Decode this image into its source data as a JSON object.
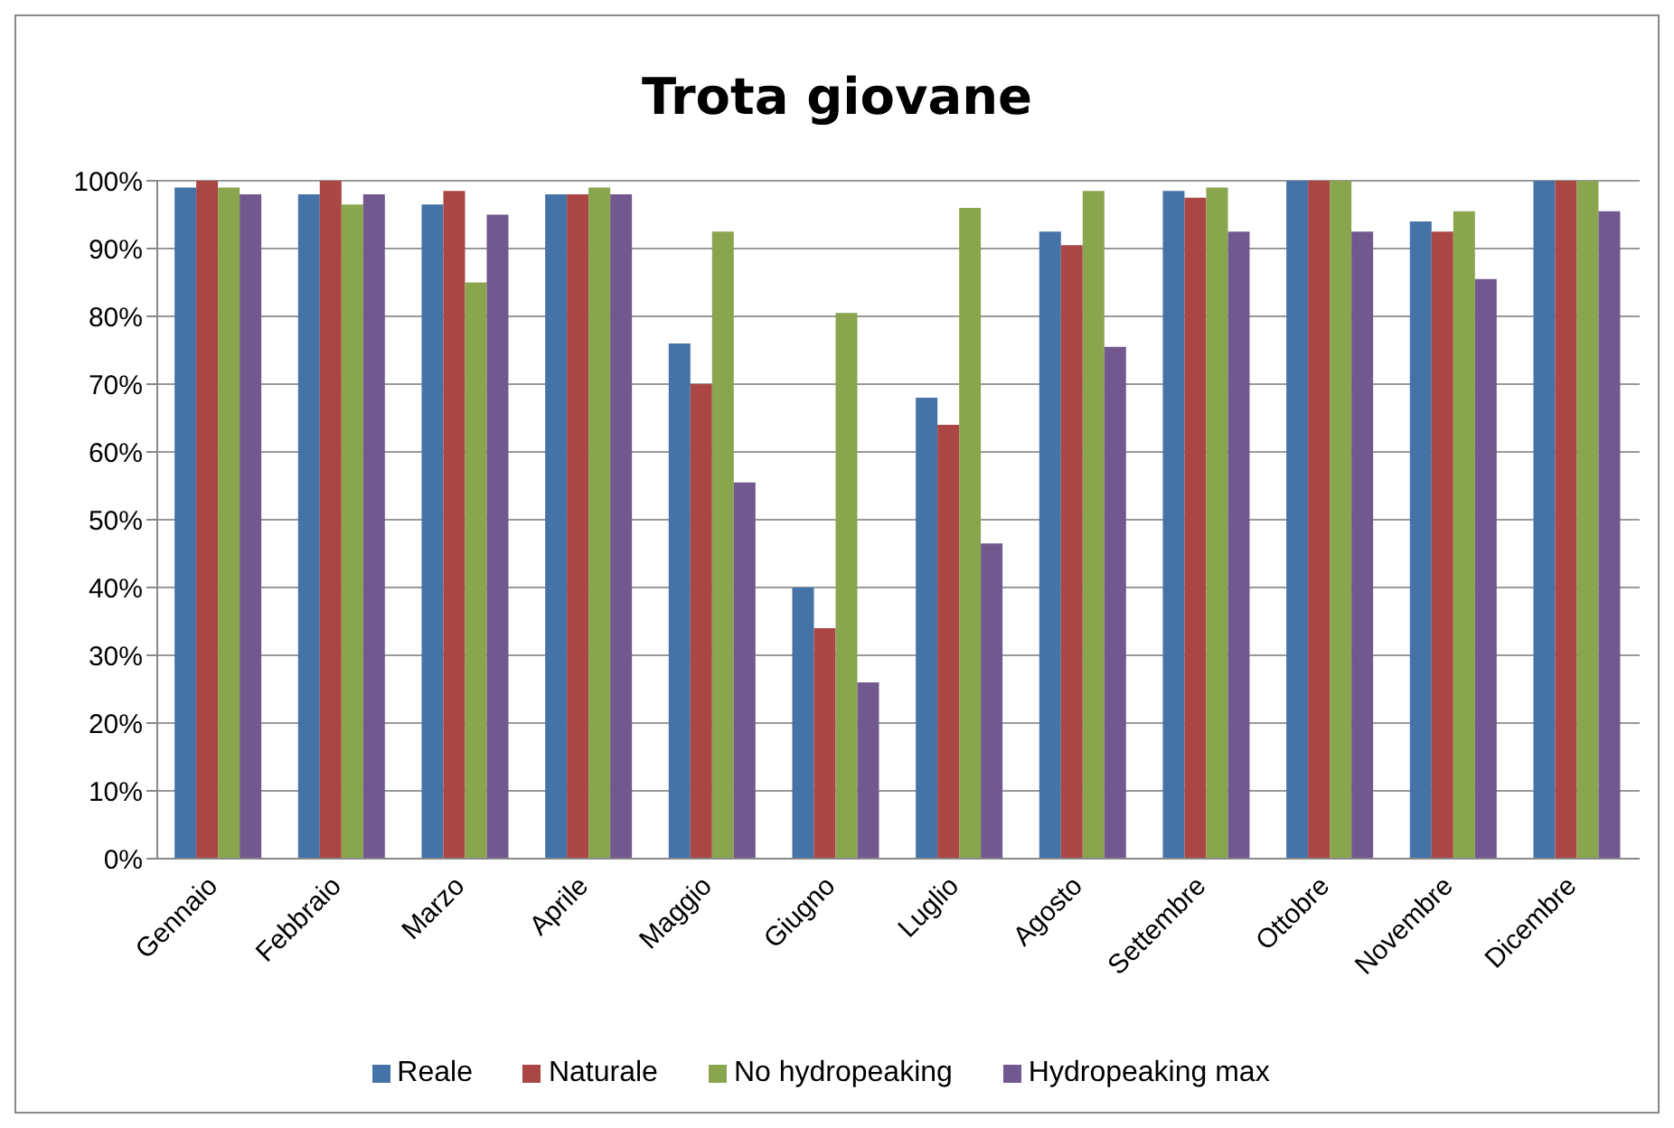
{
  "chart_data": {
    "type": "bar",
    "title": "Trota giovane",
    "categories": [
      "Gennaio",
      "Febbraio",
      "Marzo",
      "Aprile",
      "Maggio",
      "Giugno",
      "Luglio",
      "Agosto",
      "Settembre",
      "Ottobre",
      "Novembre",
      "Dicembre"
    ],
    "series": [
      {
        "name": "Reale",
        "color": "#4572a7",
        "values": [
          99,
          98,
          96.5,
          98,
          76,
          40,
          68,
          92.5,
          98.5,
          100,
          94,
          100
        ]
      },
      {
        "name": "Naturale",
        "color": "#aa4643",
        "values": [
          100,
          100,
          98.5,
          98,
          70,
          34,
          64,
          90.5,
          97.5,
          100,
          92.5,
          100
        ]
      },
      {
        "name": "No hydropeaking",
        "color": "#89a54e",
        "values": [
          99,
          96.5,
          85,
          99,
          92.5,
          80.5,
          96,
          98.5,
          99,
          100,
          95.5,
          100
        ]
      },
      {
        "name": "Hydropeaking max",
        "color": "#71588f",
        "values": [
          98,
          98,
          95,
          98,
          55.5,
          26,
          46.5,
          75.5,
          92.5,
          92.5,
          85.5,
          95.5
        ]
      }
    ],
    "ylim": [
      0,
      100
    ],
    "yticks": [
      {
        "value": 0,
        "label": "0%"
      },
      {
        "value": 10,
        "label": "10%"
      },
      {
        "value": 20,
        "label": "20%"
      },
      {
        "value": 30,
        "label": "30%"
      },
      {
        "value": 40,
        "label": "40%"
      },
      {
        "value": 50,
        "label": "50%"
      },
      {
        "value": 60,
        "label": "60%"
      },
      {
        "value": 70,
        "label": "70%"
      },
      {
        "value": 80,
        "label": "80%"
      },
      {
        "value": 90,
        "label": "90%"
      },
      {
        "value": 100,
        "label": "100%"
      }
    ],
    "grid": "y",
    "legend": "bottom"
  }
}
